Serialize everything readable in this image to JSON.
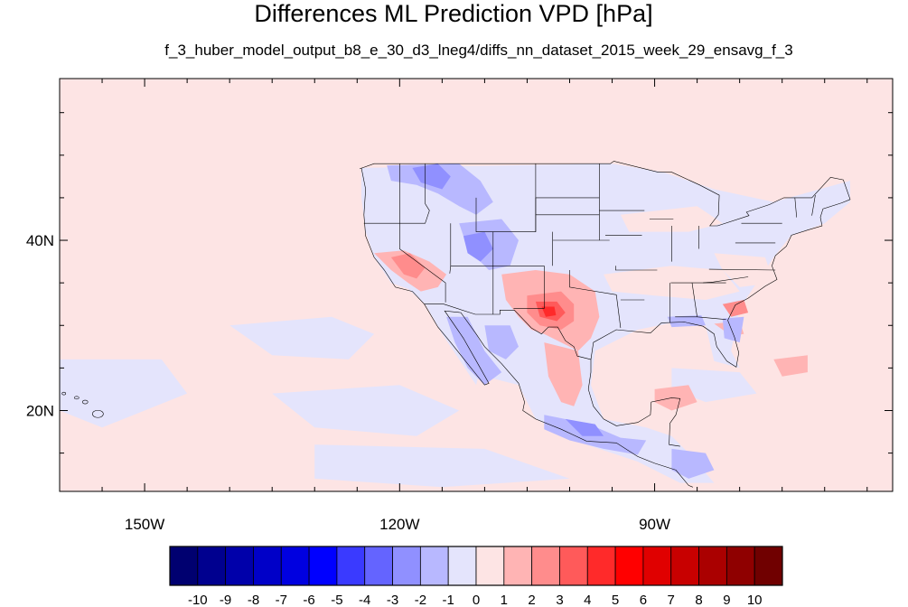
{
  "title": "Differences ML Prediction VPD [hPa]",
  "subtitle": "f_3_huber_model_output_b8_e_30_d3_lneg4/diffs_nn_dataset_2015_week_29_ensavg_f_3",
  "map": {
    "lon_range": [
      -160,
      -62
    ],
    "lat_range": [
      10.5,
      59
    ],
    "lon_ticks": [
      {
        "value": -150,
        "label": "150W"
      },
      {
        "value": -120,
        "label": "120W"
      },
      {
        "value": -90,
        "label": "90W"
      }
    ],
    "lat_ticks": [
      {
        "value": 40,
        "label": "40N"
      },
      {
        "value": 20,
        "label": "20N"
      }
    ],
    "background_value": 0.5
  },
  "colorbar": {
    "labels": [
      "-10",
      "-9",
      "-8",
      "-7",
      "-6",
      "-5",
      "-4",
      "-3",
      "-2",
      "-1",
      "0",
      "1",
      "2",
      "3",
      "4",
      "5",
      "6",
      "7",
      "8",
      "9",
      "10"
    ],
    "colors": [
      "#000070",
      "#00008f",
      "#0000aa",
      "#0000c8",
      "#0000e0",
      "#0000ff",
      "#3a3aff",
      "#6464ff",
      "#9090ff",
      "#b8b8ff",
      "#e4e4fc",
      "#fde4e4",
      "#ffb4b4",
      "#ff8c8c",
      "#ff5a5a",
      "#ff2a2a",
      "#ff0000",
      "#e00000",
      "#c80000",
      "#aa0000",
      "#8f0000",
      "#700000"
    ]
  }
}
